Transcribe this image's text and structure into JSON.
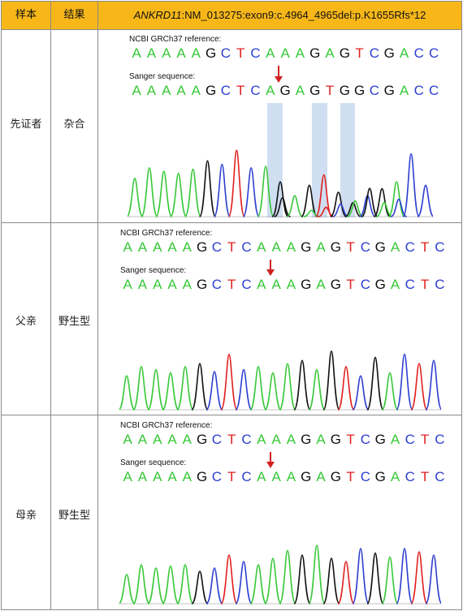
{
  "header": {
    "col1": "样本",
    "col2": "结果",
    "col3_gene": "ANKRD11",
    "col3_variant": ":NM_013275:exon9:c.4964_4965del:p.K1655Rfs*12"
  },
  "rows": [
    {
      "sample": "先证者",
      "result": "杂合",
      "ref_label": "NCBI GRCh37 reference:",
      "ref_seq": "AAAAAGCTCAAAGAGTCGACC",
      "sanger_label": "Sanger sequence:",
      "sanger_seq": "AAAAAGCTCAGAGTGGCGACC"
    },
    {
      "sample": "父亲",
      "result": "野生型",
      "ref_label": "NCBI GRCh37 reference:",
      "ref_seq": "AAAAAGCTCAAAGAGTCGACTC",
      "sanger_label": "Sanger sequence:",
      "sanger_seq": "AAAAAGCTCAAAGAGTCGACTC"
    },
    {
      "sample": "母亲",
      "result": "野生型",
      "ref_label": "NCBI GRCh37 reference:",
      "ref_seq": "AAAAAGCTCAAAGAGTCGACTC",
      "sanger_label": "Sanger sequence:",
      "sanger_seq": "AAAAAGCTCAAAGAGTCGACTC"
    }
  ],
  "colors": {
    "header_bg": "#f7b719",
    "base_A": "#38c838",
    "base_C": "#2d3fd0",
    "base_G": "#111111",
    "base_T": "#e02020",
    "arrow": "#d02020",
    "highlight": "#c8d8f0"
  }
}
